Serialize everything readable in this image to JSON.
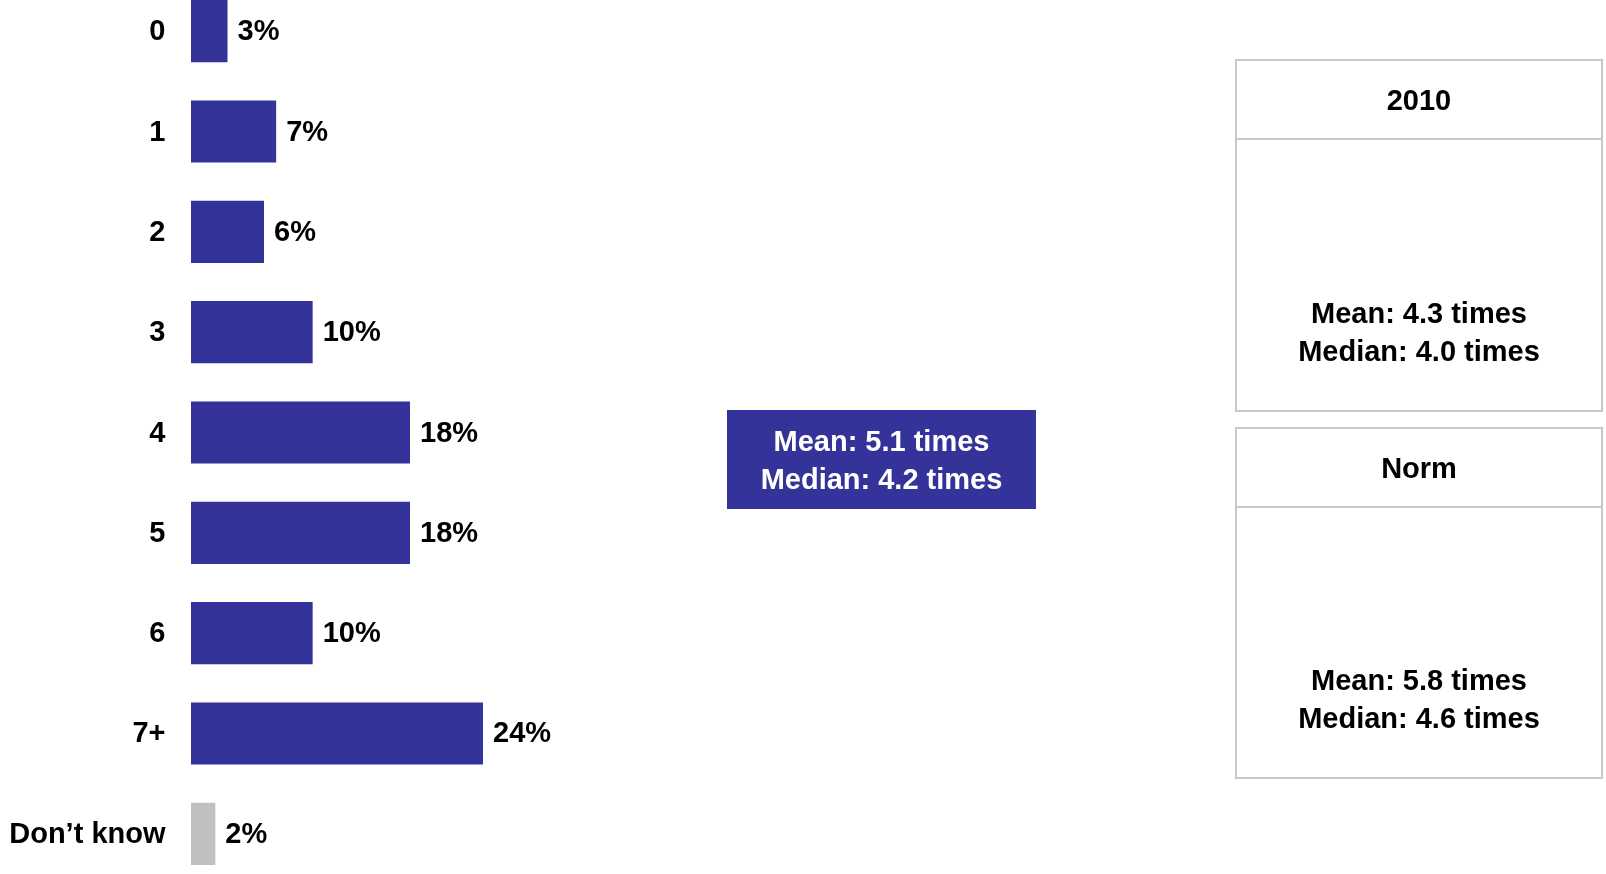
{
  "chart_data": {
    "type": "bar",
    "orientation": "horizontal",
    "categories": [
      "0",
      "1",
      "2",
      "3",
      "4",
      "5",
      "6",
      "7+",
      "Don’t know"
    ],
    "values": [
      3,
      7,
      6,
      10,
      18,
      18,
      10,
      24,
      2
    ],
    "colors": [
      "#333399",
      "#333399",
      "#333399",
      "#333399",
      "#333399",
      "#333399",
      "#333399",
      "#333399",
      "#c0c0c0"
    ],
    "value_labels": [
      "3%",
      "7%",
      "6%",
      "10%",
      "18%",
      "18%",
      "10%",
      "24%",
      "2%"
    ],
    "annotations": [
      "Mean: 5.1 times",
      "Median: 4.2 times",
      "2010",
      "Mean: 4.3 times",
      "Median: 4.0 times",
      "Norm",
      "Mean: 5.8 times",
      "Median: 4.6 times"
    ]
  }
}
